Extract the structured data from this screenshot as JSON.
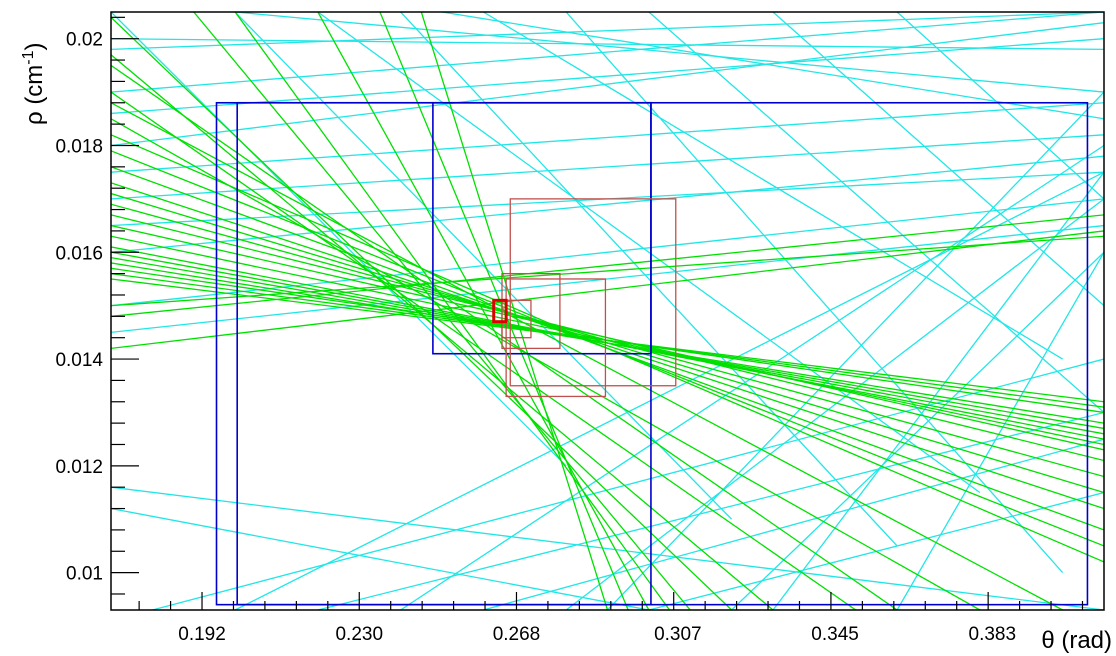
{
  "chart_data": {
    "type": "line",
    "title": "",
    "xlabel": "θ (rad)",
    "ylabel_main": "ρ (cm",
    "ylabel_sup": "-1",
    "ylabel_close": ")",
    "xlim": [
      0.17,
      0.41
    ],
    "ylim": [
      0.0093,
      0.0205
    ],
    "xticks": [
      {
        "value": 0.192,
        "label": "0.192"
      },
      {
        "value": 0.23,
        "label": "0.230"
      },
      {
        "value": 0.268,
        "label": "0.268"
      },
      {
        "value": 0.307,
        "label": "0.307"
      },
      {
        "value": 0.345,
        "label": "0.345"
      },
      {
        "value": 0.383,
        "label": "0.383"
      }
    ],
    "yticks": [
      {
        "value": 0.01,
        "label": "0.01"
      },
      {
        "value": 0.012,
        "label": "0.012"
      },
      {
        "value": 0.014,
        "label": "0.014"
      },
      {
        "value": 0.016,
        "label": "0.016"
      },
      {
        "value": 0.018,
        "label": "0.018"
      },
      {
        "value": 0.02,
        "label": "0.02"
      }
    ],
    "colors": {
      "green_curves": "#00e000",
      "cyan_curves": "#22e6e6",
      "blue_boxes": "#0000cc",
      "red_boxes": "#c0504d",
      "best_box": "#dd0000"
    },
    "series": [
      {
        "color": "green",
        "lines": [
          [
            [
              0.17,
              0.0158
            ],
            [
              0.41,
              0.0128
            ]
          ],
          [
            [
              0.17,
              0.0157
            ],
            [
              0.41,
              0.013
            ]
          ],
          [
            [
              0.17,
              0.0159
            ],
            [
              0.41,
              0.0127
            ]
          ],
          [
            [
              0.17,
              0.016
            ],
            [
              0.41,
              0.0126
            ]
          ],
          [
            [
              0.17,
              0.0161
            ],
            [
              0.41,
              0.0125
            ]
          ],
          [
            [
              0.17,
              0.0156
            ],
            [
              0.41,
              0.0131
            ]
          ],
          [
            [
              0.17,
              0.0163
            ],
            [
              0.41,
              0.0124
            ]
          ],
          [
            [
              0.17,
              0.0165
            ],
            [
              0.41,
              0.0123
            ]
          ],
          [
            [
              0.17,
              0.0155
            ],
            [
              0.41,
              0.0132
            ]
          ],
          [
            [
              0.17,
              0.0167
            ],
            [
              0.41,
              0.0121
            ]
          ],
          [
            [
              0.17,
              0.0169
            ],
            [
              0.41,
              0.0118
            ]
          ],
          [
            [
              0.17,
              0.0171
            ],
            [
              0.41,
              0.0115
            ]
          ],
          [
            [
              0.17,
              0.0173
            ],
            [
              0.41,
              0.0112
            ]
          ],
          [
            [
              0.17,
              0.0176
            ],
            [
              0.41,
              0.0108
            ]
          ],
          [
            [
              0.17,
              0.0179
            ],
            [
              0.41,
              0.0105
            ]
          ],
          [
            [
              0.17,
              0.0182
            ],
            [
              0.41,
              0.0102
            ]
          ],
          [
            [
              0.17,
              0.0185
            ],
            [
              0.38,
              0.0093
            ]
          ],
          [
            [
              0.17,
              0.019
            ],
            [
              0.35,
              0.0093
            ]
          ],
          [
            [
              0.17,
              0.0197
            ],
            [
              0.33,
              0.0093
            ]
          ],
          [
            [
              0.17,
              0.0204
            ],
            [
              0.32,
              0.0093
            ]
          ],
          [
            [
              0.19,
              0.0205
            ],
            [
              0.31,
              0.0093
            ]
          ],
          [
            [
              0.2,
              0.0205
            ],
            [
              0.305,
              0.0093
            ]
          ],
          [
            [
              0.22,
              0.0205
            ],
            [
              0.3,
              0.0093
            ]
          ],
          [
            [
              0.235,
              0.0205
            ],
            [
              0.295,
              0.0093
            ]
          ],
          [
            [
              0.245,
              0.0205
            ],
            [
              0.29,
              0.0093
            ]
          ],
          [
            [
              0.17,
              0.0148
            ],
            [
              0.41,
              0.0167
            ]
          ],
          [
            [
              0.17,
              0.0142
            ],
            [
              0.41,
              0.0164
            ]
          ],
          [
            [
              0.17,
              0.015
            ],
            [
              0.41,
              0.0163
            ]
          ],
          [
            [
              0.17,
              0.0195
            ],
            [
              0.36,
              0.0093
            ]
          ],
          [
            [
              0.17,
              0.0188
            ],
            [
              0.4,
              0.0093
            ]
          ]
        ]
      },
      {
        "color": "cyan",
        "lines": [
          [
            [
              0.17,
              0.019
            ],
            [
              0.41,
              0.0205
            ]
          ],
          [
            [
              0.17,
              0.0186
            ],
            [
              0.41,
              0.02
            ]
          ],
          [
            [
              0.17,
              0.017
            ],
            [
              0.41,
              0.0182
            ]
          ],
          [
            [
              0.17,
              0.0165
            ],
            [
              0.41,
              0.0175
            ]
          ],
          [
            [
              0.17,
              0.015
            ],
            [
              0.41,
              0.017
            ]
          ],
          [
            [
              0.17,
              0.0145
            ],
            [
              0.41,
              0.0165
            ]
          ],
          [
            [
              0.17,
              0.0116
            ],
            [
              0.41,
              0.0093
            ]
          ],
          [
            [
              0.17,
              0.0112
            ],
            [
              0.3,
              0.0093
            ]
          ],
          [
            [
              0.17,
              0.0198
            ],
            [
              0.41,
              0.0205
            ]
          ],
          [
            [
              0.2,
              0.0205
            ],
            [
              0.41,
              0.019
            ]
          ],
          [
            [
              0.25,
              0.0205
            ],
            [
              0.41,
              0.0185
            ]
          ],
          [
            [
              0.17,
              0.0175
            ],
            [
              0.41,
              0.0188
            ]
          ],
          [
            [
              0.17,
              0.016
            ],
            [
              0.41,
              0.0178
            ]
          ],
          [
            [
              0.18,
              0.0093
            ],
            [
              0.41,
              0.014
            ]
          ],
          [
            [
              0.22,
              0.0093
            ],
            [
              0.41,
              0.013
            ]
          ],
          [
            [
              0.26,
              0.0093
            ],
            [
              0.41,
              0.0125
            ]
          ],
          [
            [
              0.3,
              0.0093
            ],
            [
              0.41,
              0.0115
            ]
          ],
          [
            [
              0.2,
              0.0093
            ],
            [
              0.41,
              0.0175
            ]
          ],
          [
            [
              0.24,
              0.0093
            ],
            [
              0.41,
              0.018
            ]
          ],
          [
            [
              0.28,
              0.0093
            ],
            [
              0.41,
              0.017
            ]
          ],
          [
            [
              0.32,
              0.0093
            ],
            [
              0.41,
              0.016
            ]
          ],
          [
            [
              0.17,
              0.0205
            ],
            [
              0.28,
              0.012
            ]
          ],
          [
            [
              0.2,
              0.0205
            ],
            [
              0.32,
              0.011
            ]
          ],
          [
            [
              0.24,
              0.0205
            ],
            [
              0.36,
              0.0105
            ]
          ],
          [
            [
              0.28,
              0.0205
            ],
            [
              0.4,
              0.01
            ]
          ],
          [
            [
              0.3,
              0.0205
            ],
            [
              0.41,
              0.013
            ]
          ],
          [
            [
              0.33,
              0.0205
            ],
            [
              0.41,
              0.015
            ]
          ],
          [
            [
              0.36,
              0.0205
            ],
            [
              0.41,
              0.017
            ]
          ],
          [
            [
              0.26,
              0.0205
            ],
            [
              0.4,
              0.014
            ]
          ],
          [
            [
              0.22,
              0.0205
            ],
            [
              0.38,
              0.0115
            ]
          ],
          [
            [
              0.29,
              0.0093
            ],
            [
              0.41,
              0.019
            ]
          ],
          [
            [
              0.33,
              0.0093
            ],
            [
              0.41,
              0.0175
            ]
          ],
          [
            [
              0.36,
              0.0093
            ],
            [
              0.41,
              0.016
            ]
          ],
          [
            [
              0.17,
              0.02
            ],
            [
              0.41,
              0.0198
            ]
          ],
          [
            [
              0.17,
              0.018
            ],
            [
              0.41,
              0.0203
            ]
          ]
        ]
      }
    ],
    "boxes_blue": [
      {
        "x": [
          0.1955,
          0.3005
        ],
        "y": [
          0.0094,
          0.0188
        ]
      },
      {
        "x": [
          0.2478,
          0.3005
        ],
        "y": [
          0.0141,
          0.0188
        ]
      },
      {
        "x": [
          0.2005,
          0.406
        ],
        "y": [
          0.0094,
          0.0188
        ]
      }
    ],
    "boxes_red": [
      {
        "x": [
          0.2665,
          0.3065
        ],
        "y": [
          0.0135,
          0.017
        ]
      },
      {
        "x": [
          0.2655,
          0.2895
        ],
        "y": [
          0.0133,
          0.0155
        ]
      },
      {
        "x": [
          0.2645,
          0.2785
        ],
        "y": [
          0.0142,
          0.0156
        ]
      },
      {
        "x": [
          0.2645,
          0.2715
        ],
        "y": [
          0.0144,
          0.0151
        ]
      }
    ],
    "box_best": {
      "x": [
        0.2625,
        0.2655
      ],
      "y": [
        0.0147,
        0.0151
      ]
    }
  }
}
